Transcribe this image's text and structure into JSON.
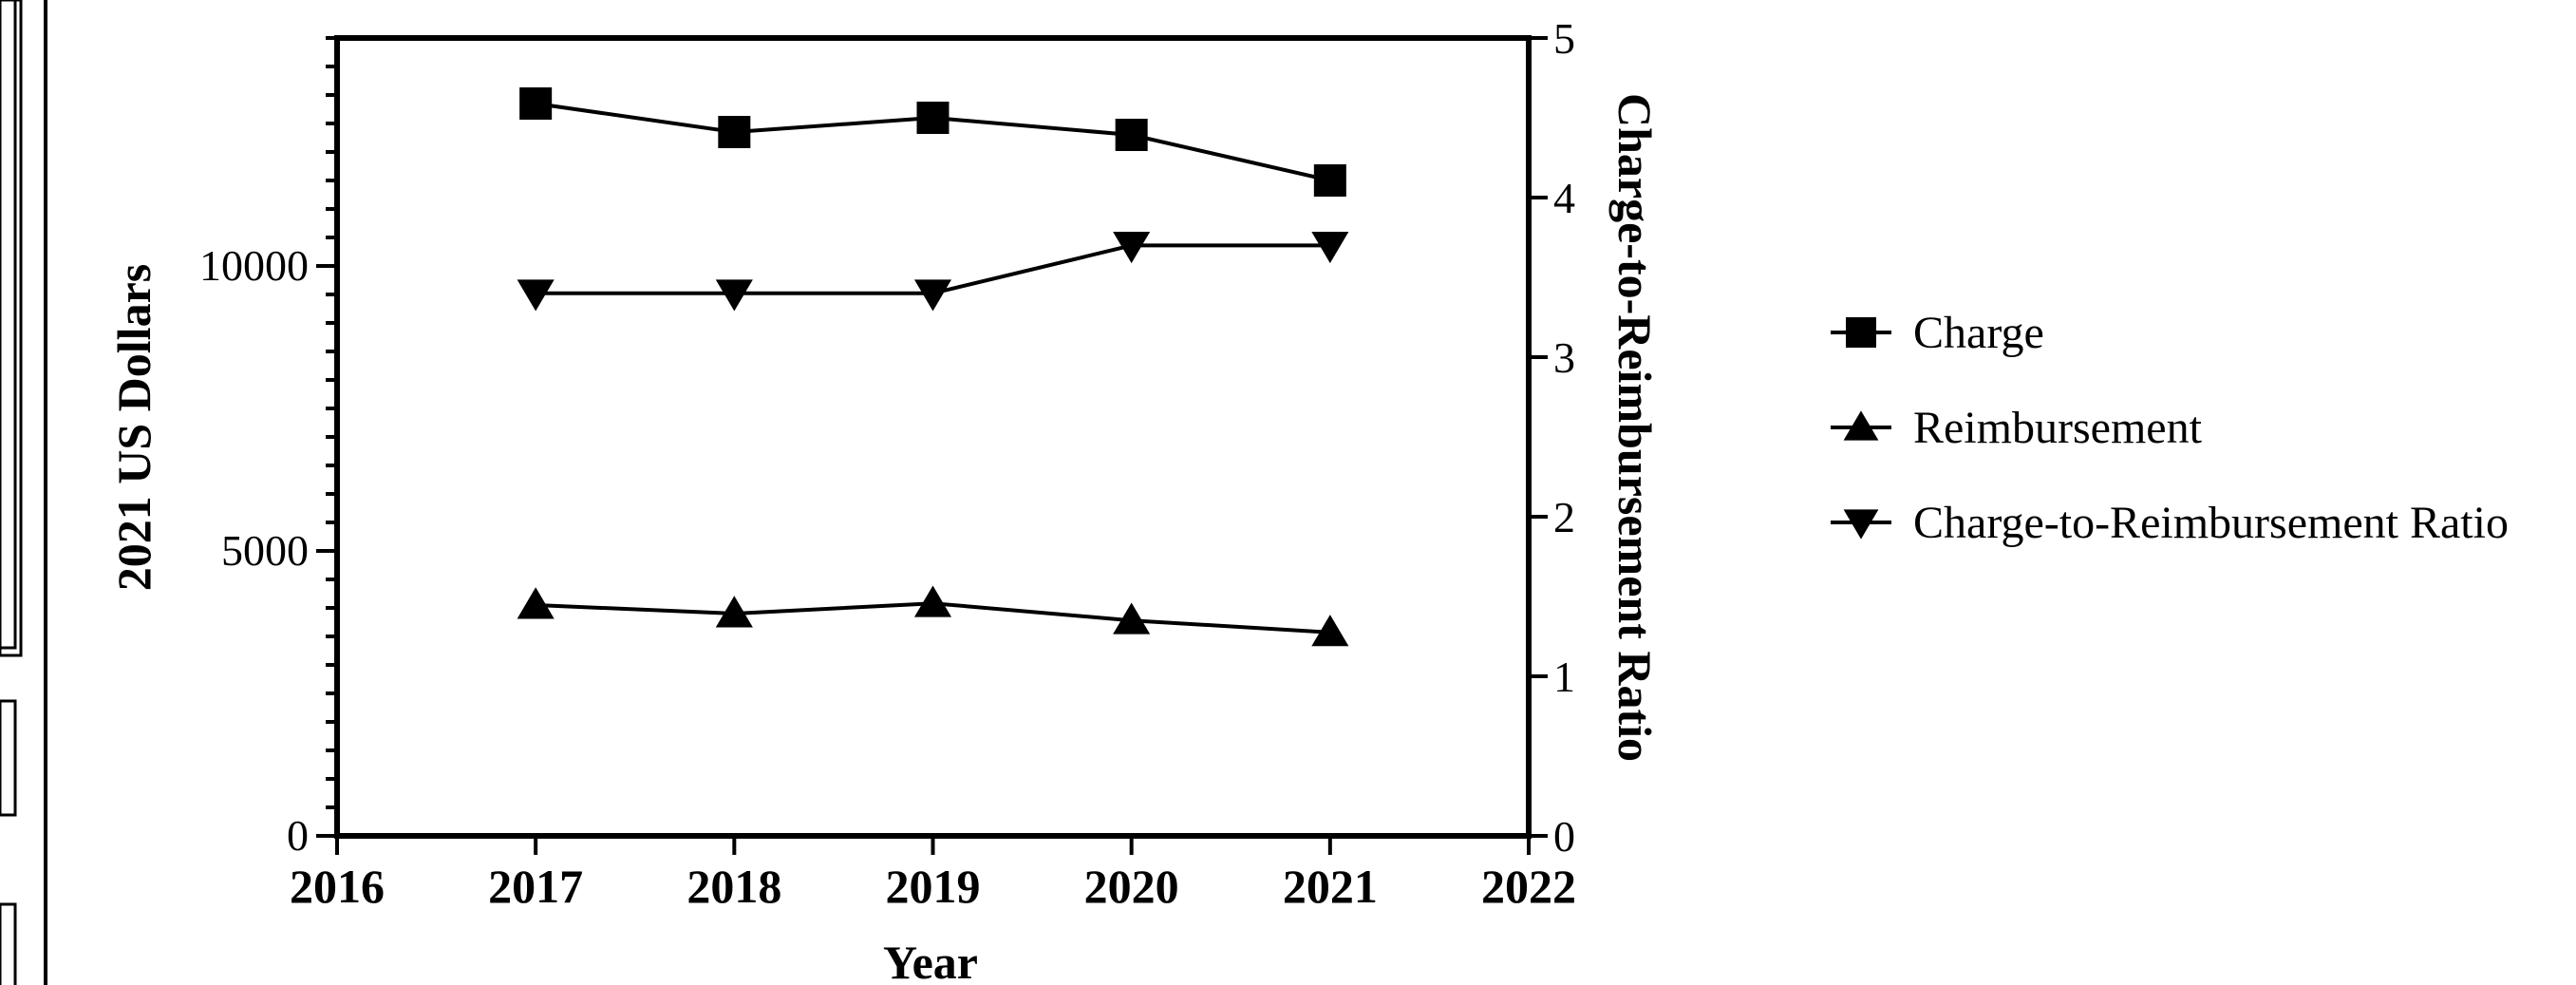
{
  "chart_data": {
    "type": "line",
    "title": "",
    "xlabel": "Year",
    "ylabel": "2021 US Dollars",
    "y2label": "Charge-to-Reimbursement Ratio",
    "x": [
      2017,
      2018,
      2019,
      2020,
      2021
    ],
    "xlim": [
      2016,
      2022
    ],
    "ylim": [
      0,
      14000
    ],
    "y2lim": [
      0,
      5
    ],
    "x_ticks": [
      "2016",
      "2017",
      "2018",
      "2019",
      "2020",
      "2021",
      "2022"
    ],
    "y_ticks": [
      "0",
      "5000",
      "10000"
    ],
    "y2_ticks": [
      "0",
      "1",
      "2",
      "3",
      "4",
      "5"
    ],
    "grid": false,
    "legend_position": "right",
    "series": [
      {
        "name": "Charge",
        "axis": "left",
        "marker": "square",
        "values": [
          12850,
          12350,
          12600,
          12300,
          11500
        ]
      },
      {
        "name": "Reimbursement",
        "axis": "left",
        "marker": "triangle-up",
        "values": [
          4050,
          3900,
          4080,
          3780,
          3570
        ]
      },
      {
        "name": "Charge-to-Reimbursement Ratio",
        "axis": "right",
        "marker": "triangle-down",
        "values": [
          3.4,
          3.4,
          3.4,
          3.7,
          3.7
        ]
      }
    ]
  }
}
